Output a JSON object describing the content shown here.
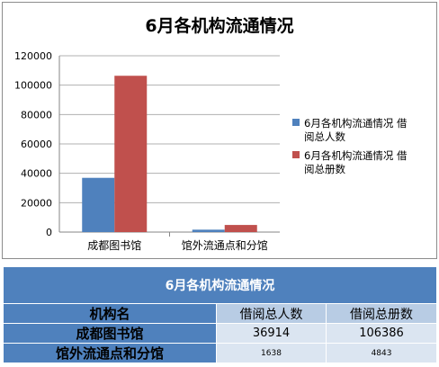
{
  "chart_data": {
    "type": "bar",
    "title": "6月各机构流通情况",
    "categories": [
      "成都图书馆",
      "馆外流通点和分馆"
    ],
    "series": [
      {
        "name": "6月各机构流通情况 借阅总人数",
        "values": [
          36914,
          1638
        ],
        "color": "#4f81bd"
      },
      {
        "name": "6月各机构流通情况 借阅总册数",
        "values": [
          106386,
          4843
        ],
        "color": "#c0504d"
      }
    ],
    "ylim": [
      0,
      120000
    ],
    "yticks": [
      "0",
      "20000",
      "40000",
      "60000",
      "80000",
      "100000",
      "120000"
    ],
    "grid": true,
    "legend_position": "right"
  },
  "table": {
    "title": "6月各机构流通情况",
    "header": {
      "name": "机构名",
      "col1": "借阅总人数",
      "col2": "借阅总册数"
    },
    "rows": [
      {
        "name": "成都图书馆",
        "col1": "36914",
        "col2": "106386"
      },
      {
        "name": "馆外流通点和分馆",
        "col1": "1638",
        "col2": "4843"
      }
    ]
  }
}
